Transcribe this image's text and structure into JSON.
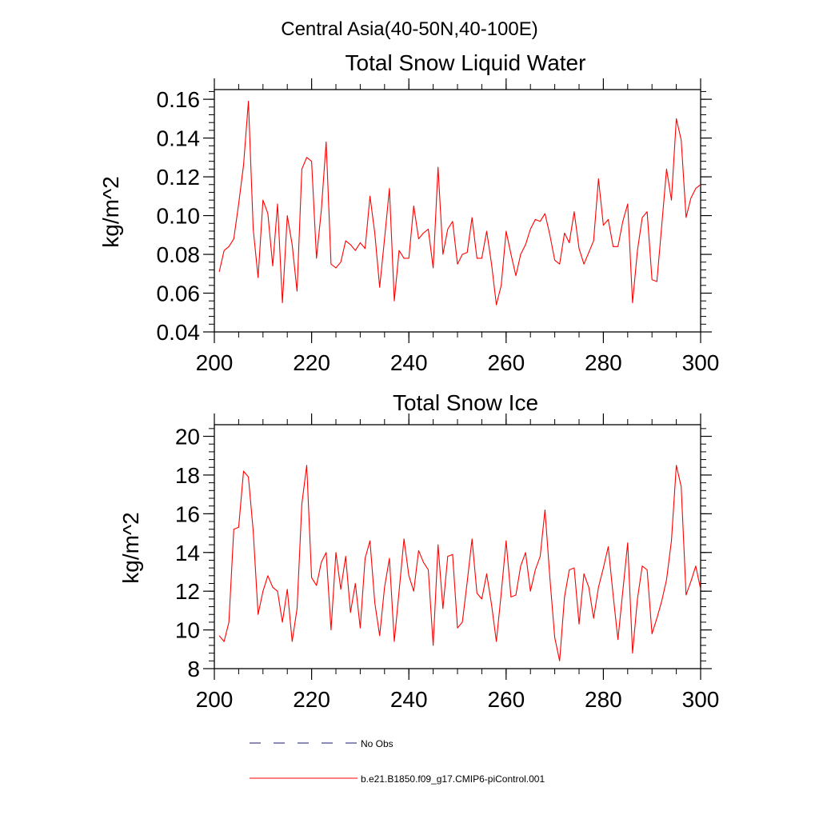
{
  "figure": {
    "main_title": "Central Asia(40-50N,40-100E)"
  },
  "chart_data": [
    {
      "type": "line",
      "title": "Total Snow Liquid Water",
      "xlabel": "",
      "ylabel": "kg/m^2",
      "xlim": [
        200,
        300
      ],
      "ylim": [
        0.04,
        0.165
      ],
      "xticks": [
        "200",
        "220",
        "240",
        "260",
        "280",
        "300"
      ],
      "xtick_values": [
        200,
        220,
        240,
        260,
        280,
        300
      ],
      "yticks": [
        "0.04",
        "0.06",
        "0.08",
        "0.10",
        "0.12",
        "0.14",
        "0.16"
      ],
      "ytick_values": [
        0.04,
        0.06,
        0.08,
        0.1,
        0.12,
        0.14,
        0.16
      ],
      "x": [
        201,
        202,
        203,
        204,
        205,
        206,
        207,
        208,
        209,
        210,
        211,
        212,
        213,
        214,
        215,
        216,
        217,
        218,
        219,
        220,
        221,
        222,
        223,
        224,
        225,
        226,
        227,
        228,
        229,
        230,
        231,
        232,
        233,
        234,
        235,
        236,
        237,
        238,
        239,
        240,
        241,
        242,
        243,
        244,
        245,
        246,
        247,
        248,
        249,
        250,
        251,
        252,
        253,
        254,
        255,
        256,
        257,
        258,
        259,
        260,
        261,
        262,
        263,
        264,
        265,
        266,
        267,
        268,
        269,
        270,
        271,
        272,
        273,
        274,
        275,
        276,
        277,
        278,
        279,
        280,
        281,
        282,
        283,
        284,
        285,
        286,
        287,
        288,
        289,
        290,
        291,
        292,
        293,
        294,
        295,
        296,
        297,
        298,
        299,
        300
      ],
      "series": [
        {
          "name": "b.e21.B1850.f09_g17.CMIP6-piControl.001",
          "color": "#ff0000",
          "values": [
            0.071,
            0.082,
            0.084,
            0.088,
            0.106,
            0.126,
            0.159,
            0.093,
            0.068,
            0.108,
            0.101,
            0.074,
            0.106,
            0.055,
            0.1,
            0.085,
            0.061,
            0.124,
            0.13,
            0.128,
            0.078,
            0.103,
            0.138,
            0.075,
            0.073,
            0.076,
            0.087,
            0.085,
            0.082,
            0.086,
            0.083,
            0.11,
            0.091,
            0.063,
            0.088,
            0.114,
            0.056,
            0.082,
            0.078,
            0.078,
            0.105,
            0.088,
            0.091,
            0.093,
            0.073,
            0.125,
            0.08,
            0.093,
            0.097,
            0.075,
            0.08,
            0.081,
            0.099,
            0.078,
            0.078,
            0.092,
            0.075,
            0.054,
            0.064,
            0.092,
            0.08,
            0.069,
            0.08,
            0.085,
            0.093,
            0.098,
            0.097,
            0.101,
            0.09,
            0.077,
            0.075,
            0.091,
            0.086,
            0.102,
            0.083,
            0.075,
            0.081,
            0.087,
            0.119,
            0.095,
            0.098,
            0.084,
            0.084,
            0.097,
            0.106,
            0.055,
            0.082,
            0.099,
            0.102,
            0.067,
            0.066,
            0.095,
            0.124,
            0.108,
            0.15,
            0.139,
            0.099,
            0.109,
            0.114,
            0.116
          ]
        }
      ]
    },
    {
      "type": "line",
      "title": "Total Snow Ice",
      "xlabel": "",
      "ylabel": "kg/m^2",
      "xlim": [
        200,
        300
      ],
      "ylim": [
        8,
        20.6
      ],
      "xticks": [
        "200",
        "220",
        "240",
        "260",
        "280",
        "300"
      ],
      "xtick_values": [
        200,
        220,
        240,
        260,
        280,
        300
      ],
      "yticks": [
        "8",
        "10",
        "12",
        "14",
        "16",
        "18",
        "20"
      ],
      "ytick_values": [
        8,
        10,
        12,
        14,
        16,
        18,
        20
      ],
      "x": [
        201,
        202,
        203,
        204,
        205,
        206,
        207,
        208,
        209,
        210,
        211,
        212,
        213,
        214,
        215,
        216,
        217,
        218,
        219,
        220,
        221,
        222,
        223,
        224,
        225,
        226,
        227,
        228,
        229,
        230,
        231,
        232,
        233,
        234,
        235,
        236,
        237,
        238,
        239,
        240,
        241,
        242,
        243,
        244,
        245,
        246,
        247,
        248,
        249,
        250,
        251,
        252,
        253,
        254,
        255,
        256,
        257,
        258,
        259,
        260,
        261,
        262,
        263,
        264,
        265,
        266,
        267,
        268,
        269,
        270,
        271,
        272,
        273,
        274,
        275,
        276,
        277,
        278,
        279,
        280,
        281,
        282,
        283,
        284,
        285,
        286,
        287,
        288,
        289,
        290,
        291,
        292,
        293,
        294,
        295,
        296,
        297,
        298,
        299,
        300
      ],
      "series": [
        {
          "name": "b.e21.B1850.f09_g17.CMIP6-piControl.001",
          "color": "#ff0000",
          "values": [
            9.7,
            9.4,
            10.4,
            15.2,
            15.3,
            18.2,
            17.9,
            15.1,
            10.8,
            12.0,
            12.8,
            12.2,
            12.0,
            10.4,
            12.1,
            9.4,
            11.1,
            16.5,
            18.5,
            12.7,
            12.3,
            13.5,
            14.0,
            10.0,
            14.0,
            12.1,
            13.8,
            10.9,
            12.4,
            10.1,
            13.7,
            14.6,
            11.4,
            9.7,
            12.2,
            13.7,
            9.4,
            12.0,
            14.7,
            12.8,
            12.0,
            14.1,
            13.5,
            13.1,
            9.2,
            14.4,
            11.1,
            13.8,
            13.9,
            10.1,
            10.4,
            12.5,
            14.7,
            11.9,
            11.6,
            12.9,
            11.3,
            9.4,
            11.9,
            14.6,
            11.7,
            11.8,
            13.3,
            14.0,
            12.0,
            13.1,
            13.8,
            16.2,
            12.7,
            9.6,
            8.4,
            11.7,
            13.1,
            13.2,
            10.3,
            12.9,
            12.2,
            10.6,
            12.2,
            13.2,
            14.3,
            11.8,
            9.5,
            12.0,
            14.5,
            8.8,
            11.6,
            13.3,
            13.1,
            9.8,
            10.6,
            11.5,
            12.6,
            14.6,
            18.5,
            17.4,
            11.8,
            12.5,
            13.3,
            12.1
          ]
        }
      ]
    }
  ],
  "legend": {
    "items": [
      {
        "label": "No Obs",
        "color": "#1a1a6e",
        "dash": true
      },
      {
        "label": "b.e21.B1850.f09_g17.CMIP6-piControl.001",
        "color": "#ff0000",
        "dash": false
      }
    ]
  }
}
